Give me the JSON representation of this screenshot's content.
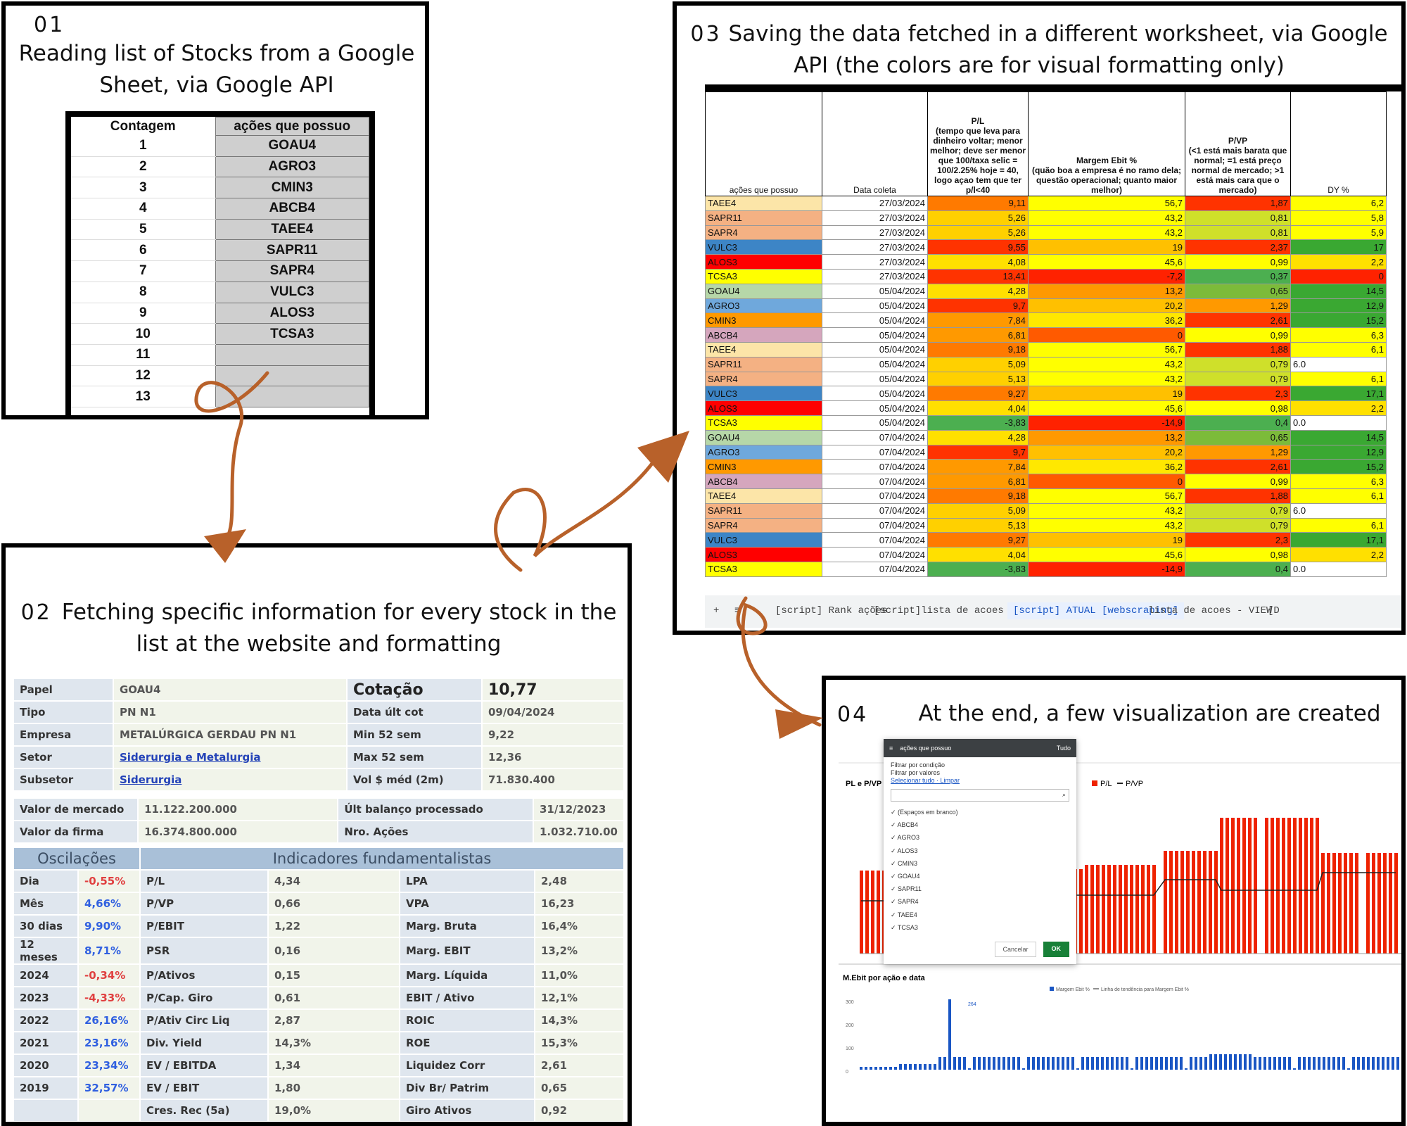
{
  "panel1": {
    "num": "01",
    "title": "Reading list of Stocks from a Google Sheet, via Google API",
    "headers": [
      "Contagem",
      "ações que possuo"
    ],
    "rows": [
      [
        "1",
        "GOAU4"
      ],
      [
        "2",
        "AGRO3"
      ],
      [
        "3",
        "CMIN3"
      ],
      [
        "4",
        "ABCB4"
      ],
      [
        "5",
        "TAEE4"
      ],
      [
        "6",
        "SAPR11"
      ],
      [
        "7",
        "SAPR4"
      ],
      [
        "8",
        "VULC3"
      ],
      [
        "9",
        "ALOS3"
      ],
      [
        "10",
        "TCSA3"
      ],
      [
        "11",
        ""
      ],
      [
        "12",
        ""
      ],
      [
        "13",
        ""
      ]
    ]
  },
  "panel2": {
    "num": "02",
    "title": "Fetching specific information for every stock in the list at the website and formatting",
    "top_rows": [
      {
        "l1": "Papel",
        "v1": "GOAU4",
        "l2": "Cotação",
        "v2": "10,77"
      },
      {
        "l1": "Tipo",
        "v1": "PN N1",
        "l2": "Data últ cot",
        "v2": "09/04/2024"
      },
      {
        "l1": "Empresa",
        "v1": "METALÚRGICA GERDAU PN N1",
        "l2": "Min 52 sem",
        "v2": "9,22"
      },
      {
        "l1": "Setor",
        "v1": "Siderurgia e Metalurgia",
        "l2": "Max 52 sem",
        "v2": "12,36"
      },
      {
        "l1": "Subsetor",
        "v1": "Siderurgia",
        "l2": "Vol $ méd (2m)",
        "v2": "71.830.400"
      }
    ],
    "mid_rows": [
      {
        "l1": "Valor de mercado",
        "v1": "11.122.200.000",
        "l2": "Últ balanço processado",
        "v2": "31/12/2023"
      },
      {
        "l1": "Valor da firma",
        "v1": "16.374.800.000",
        "l2": "Nro. Ações",
        "v2": "1.032.710.00"
      }
    ],
    "osc_header": "Oscilações",
    "ind_header": "Indicadores fundamentalistas",
    "bottom_rows": [
      {
        "a": "Dia",
        "b": "-0,55%",
        "c": "P/L",
        "d": "4,34",
        "e": "LPA",
        "f": "2,48"
      },
      {
        "a": "Mês",
        "b": "4,66%",
        "c": "P/VP",
        "d": "0,66",
        "e": "VPA",
        "f": "16,23"
      },
      {
        "a": "30 dias",
        "b": "9,90%",
        "c": "P/EBIT",
        "d": "1,22",
        "e": "Marg. Bruta",
        "f": "16,4%"
      },
      {
        "a": "12 meses",
        "b": "8,71%",
        "c": "PSR",
        "d": "0,16",
        "e": "Marg. EBIT",
        "f": "13,2%"
      },
      {
        "a": "2024",
        "b": "-0,34%",
        "c": "P/Ativos",
        "d": "0,15",
        "e": "Marg. Líquida",
        "f": "11,0%"
      },
      {
        "a": "2023",
        "b": "-4,33%",
        "c": "P/Cap. Giro",
        "d": "0,61",
        "e": "EBIT / Ativo",
        "f": "12,1%"
      },
      {
        "a": "2022",
        "b": "26,16%",
        "c": "P/Ativ Circ Liq",
        "d": "2,87",
        "e": "ROIC",
        "f": "14,3%"
      },
      {
        "a": "2021",
        "b": "23,16%",
        "c": "Div. Yield",
        "d": "14,3%",
        "e": "ROE",
        "f": "15,3%"
      },
      {
        "a": "2020",
        "b": "23,34%",
        "c": "EV / EBITDA",
        "d": "1,34",
        "e": "Liquidez Corr",
        "f": "2,61"
      },
      {
        "a": "2019",
        "b": "32,57%",
        "c": "EV / EBIT",
        "d": "1,80",
        "e": "Div Br/ Patrim",
        "f": "0,65"
      },
      {
        "a": "",
        "b": "",
        "c": "Cres. Rec (5a)",
        "d": "19,0%",
        "e": "Giro Ativos",
        "f": "0,92"
      }
    ]
  },
  "panel3": {
    "num": "03",
    "title": "Saving the data fetched in a different worksheet, via Google API (the colors are for visual formatting only)",
    "headers": [
      "ações que possuo",
      "Data coleta",
      "P/L\n(tempo que leva para dinheiro voltar; menor melhor; deve ser menor que 100/taxa selic = 100/2.25% hoje = 40, logo açao tem que ter p/l<40",
      "Margem Ebit %\n(quão boa a empresa é no ramo dela; questão operacional; quanto maior melhor)",
      "P/VP\n(<1 está mais barata que normal; =1 está preço normal de mercado; >1 está mais cara que o mercado)",
      "DY %"
    ],
    "rows": [
      [
        "TAEE4",
        "27/03/2024",
        "9,11",
        "56,7",
        "1,87",
        "6,2"
      ],
      [
        "SAPR11",
        "27/03/2024",
        "5,26",
        "43,2",
        "0,81",
        "5,8"
      ],
      [
        "SAPR4",
        "27/03/2024",
        "5,26",
        "43,2",
        "0,81",
        "5,9"
      ],
      [
        "VULC3",
        "27/03/2024",
        "9,55",
        "19",
        "2,37",
        "17"
      ],
      [
        "ALOS3",
        "27/03/2024",
        "4,08",
        "45,6",
        "0,99",
        "2,2"
      ],
      [
        "TCSA3",
        "27/03/2024",
        "13,41",
        "-7,2",
        "0,37",
        "0"
      ],
      [
        "GOAU4",
        "05/04/2024",
        "4,28",
        "13,2",
        "0,65",
        "14,5"
      ],
      [
        "AGRO3",
        "05/04/2024",
        "9,7",
        "20,2",
        "1,29",
        "12,9"
      ],
      [
        "CMIN3",
        "05/04/2024",
        "7,84",
        "36,2",
        "2,61",
        "15,2"
      ],
      [
        "ABCB4",
        "05/04/2024",
        "6,81",
        "0",
        "0,99",
        "6,3"
      ],
      [
        "TAEE4",
        "05/04/2024",
        "9,18",
        "56,7",
        "1,88",
        "6,1"
      ],
      [
        "SAPR11",
        "05/04/2024",
        "5,09",
        "43,2",
        "0,79",
        "6.0"
      ],
      [
        "SAPR4",
        "05/04/2024",
        "5,13",
        "43,2",
        "0,79",
        "6,1"
      ],
      [
        "VULC3",
        "05/04/2024",
        "9,27",
        "19",
        "2,3",
        "17,1"
      ],
      [
        "ALOS3",
        "05/04/2024",
        "4,04",
        "45,6",
        "0,98",
        "2,2"
      ],
      [
        "TCSA3",
        "05/04/2024",
        "-3,83",
        "-14,9",
        "0,4",
        "0.0"
      ],
      [
        "GOAU4",
        "07/04/2024",
        "4,28",
        "13,2",
        "0,65",
        "14,5"
      ],
      [
        "AGRO3",
        "07/04/2024",
        "9,7",
        "20,2",
        "1,29",
        "12,9"
      ],
      [
        "CMIN3",
        "07/04/2024",
        "7,84",
        "36,2",
        "2,61",
        "15,2"
      ],
      [
        "ABCB4",
        "07/04/2024",
        "6,81",
        "0",
        "0,99",
        "6,3"
      ],
      [
        "TAEE4",
        "07/04/2024",
        "9,18",
        "56,7",
        "1,88",
        "6,1"
      ],
      [
        "SAPR11",
        "07/04/2024",
        "5,09",
        "43,2",
        "0,79",
        "6.0"
      ],
      [
        "SAPR4",
        "07/04/2024",
        "5,13",
        "43,2",
        "0,79",
        "6,1"
      ],
      [
        "VULC3",
        "07/04/2024",
        "9,27",
        "19",
        "2,3",
        "17,1"
      ],
      [
        "ALOS3",
        "07/04/2024",
        "4,04",
        "45,6",
        "0,98",
        "2,2"
      ],
      [
        "TCSA3",
        "07/04/2024",
        "-3,83",
        "-14,9",
        "0,4",
        "0.0"
      ]
    ],
    "stock_colors": {
      "TAEE4": "#fce5a8",
      "SAPR11": "#f4b183",
      "SAPR4": "#f4b183",
      "VULC3": "#3d85c6",
      "ALOS3": "#ff0000",
      "TCSA3": "#ffff00",
      "GOAU4": "#b6d7a8",
      "AGRO3": "#6fa8dc",
      "CMIN3": "#ff9900",
      "ABCB4": "#d5a6bd"
    },
    "tabs": [
      "+",
      "≡",
      "[script] Rank ações",
      "[script]lista de acoes ATUAL",
      "[script] ATUAL [webscraping]",
      "lista de acoes - VIEW",
      "[D"
    ]
  },
  "panel4": {
    "num": "04",
    "title": "At the end, a few visualization are created",
    "chart1_title": "PL e P/VP",
    "legend": [
      "P/L",
      "P/VP"
    ],
    "filter_title": "ações que possuo",
    "filter_all": "Tudo",
    "filter_opts": [
      "Filtrar por condição",
      "Filtrar por valores"
    ],
    "filter_links": "Selecionar tudo · Limpar",
    "filter_items": [
      "(Espaços em branco)",
      "ABCB4",
      "AGRO3",
      "ALOS3",
      "CMIN3",
      "GOAU4",
      "SAPR11",
      "SAPR4",
      "TAEE4",
      "TCSA3"
    ],
    "cancel": "Cancelar",
    "ok": "OK",
    "chart2_title": "M.Ebit por ação e data",
    "chart2_legend": [
      "Margem Ebit %",
      "Linha de tendência para Margem Ebit %"
    ],
    "chart2_yticks": [
      "300",
      "200",
      "100",
      "0"
    ],
    "chart2_peak": "264",
    "colors": {
      "bar_red": "#ee2200",
      "bar_blue": "#1a56c4",
      "arrow": "#b8612a"
    }
  }
}
